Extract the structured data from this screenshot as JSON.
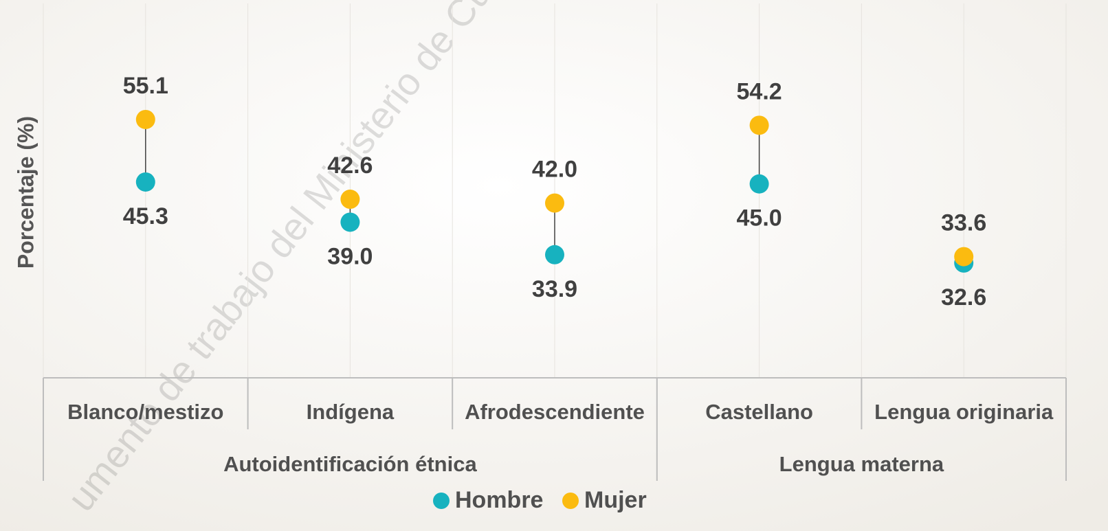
{
  "chart_data": {
    "type": "dumbbell",
    "ylabel": "Porcentaje (%)",
    "watermark": "umento de trabajo del Ministerio de Cu",
    "groups": [
      {
        "name": "Autoidentificación étnica",
        "categories": [
          "Blanco/mestizo",
          "Indígena",
          "Afrodescendiente"
        ]
      },
      {
        "name": "Lengua materna",
        "categories": [
          "Castellano",
          "Lengua originaria"
        ]
      }
    ],
    "series": [
      {
        "name": "Hombre",
        "color": "#17b2bf",
        "values": [
          45.3,
          39.0,
          33.9,
          45.0,
          32.6
        ],
        "value_labels": [
          "45.3",
          "39.0",
          "33.9",
          "45.0",
          "32.6"
        ]
      },
      {
        "name": "Mujer",
        "color": "#fbbb10",
        "values": [
          55.1,
          42.6,
          42.0,
          54.2,
          33.6
        ],
        "value_labels": [
          "55.1",
          "42.6",
          "42.0",
          "54.2",
          "33.6"
        ]
      }
    ],
    "ylim": [
      14.6,
      73.3
    ],
    "legend": "bottom"
  }
}
